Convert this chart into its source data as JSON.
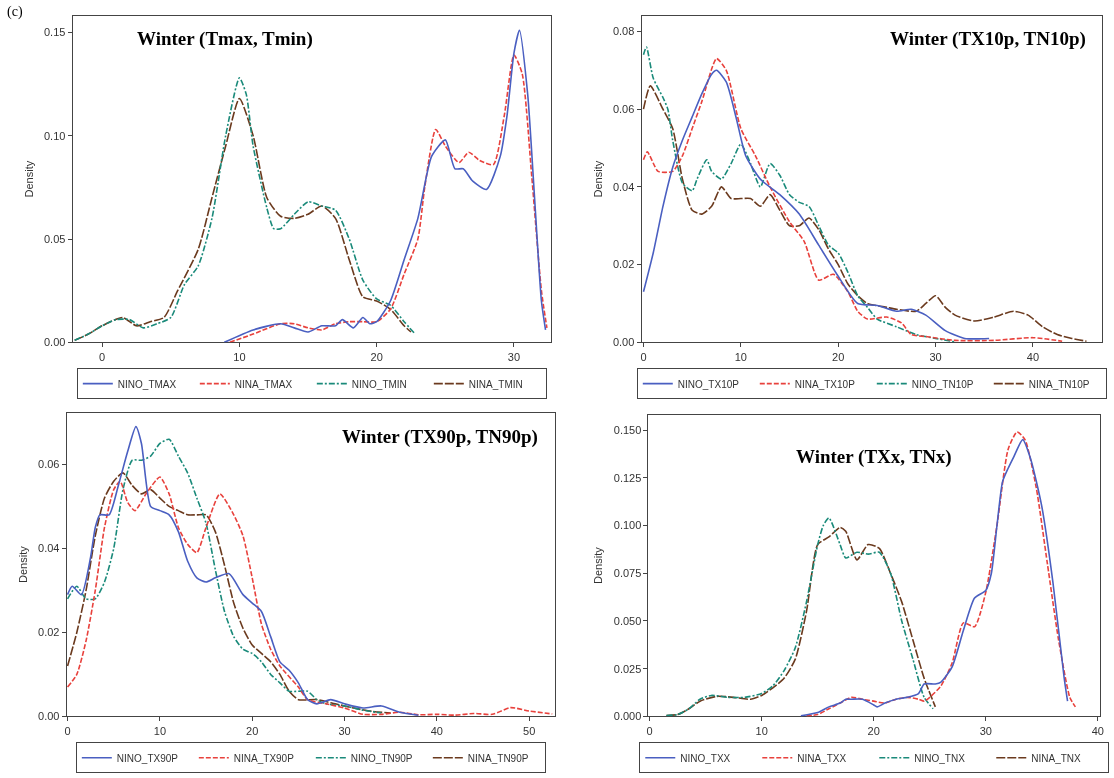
{
  "chart_data": [
    {
      "type": "line",
      "title": "Winter (Tmax, Tmin)",
      "ylabel": "Density",
      "annotations": [
        "(c)"
      ],
      "legend": "bottom",
      "xlim": [
        -2.15,
        32.7
      ],
      "ylim": [
        0,
        0.158
      ],
      "xticks": [
        0,
        10,
        20,
        30
      ],
      "yticks": [
        {
          "value": 0,
          "label": "0.00"
        },
        {
          "value": 0.05,
          "label": "0.05"
        },
        {
          "value": 0.1,
          "label": "0.10"
        },
        {
          "value": 0.15,
          "label": "0.15"
        }
      ],
      "series": [
        {
          "name": "NINO_TMAX",
          "color": "#4a5fc1",
          "line_style": "solid",
          "x": [
            8.9,
            11,
            13,
            14,
            15,
            16,
            17,
            17.5,
            18.3,
            19,
            19.5,
            20,
            21,
            22,
            23,
            24,
            25,
            25.7,
            26.3,
            27,
            28,
            29,
            29.5,
            30,
            30.4,
            31,
            31.5,
            32,
            32.3
          ],
          "values": [
            0.0,
            0.006,
            0.009,
            0.007,
            0.005,
            0.008,
            0.008,
            0.011,
            0.007,
            0.012,
            0.009,
            0.01,
            0.02,
            0.04,
            0.06,
            0.09,
            0.098,
            0.084,
            0.084,
            0.078,
            0.074,
            0.09,
            0.11,
            0.14,
            0.151,
            0.12,
            0.07,
            0.02,
            0.006
          ]
        },
        {
          "name": "NINA_TMAX",
          "color": "#e8413c",
          "line_style": "dashed",
          "x": [
            9.3,
            11,
            13,
            14,
            15,
            16,
            17,
            18,
            19,
            20,
            21,
            22,
            23,
            23.5,
            24.3,
            25,
            26,
            26.7,
            27.5,
            28.5,
            29.3,
            30,
            30.6,
            31.3,
            32,
            32.4
          ],
          "values": [
            0.0,
            0.004,
            0.009,
            0.009,
            0.007,
            0.006,
            0.009,
            0.01,
            0.01,
            0.01,
            0.016,
            0.033,
            0.05,
            0.075,
            0.103,
            0.095,
            0.087,
            0.092,
            0.088,
            0.086,
            0.11,
            0.139,
            0.13,
            0.08,
            0.025,
            0.007
          ]
        },
        {
          "name": "NINO_TMIN",
          "color": "#1a8a7a",
          "line_style": "dashdot",
          "x": [
            -2,
            -1,
            0,
            1,
            2,
            3,
            4,
            5,
            6,
            7,
            8,
            9,
            10,
            10.5,
            11,
            12,
            12.5,
            13,
            14,
            15,
            16,
            17,
            18,
            19,
            20,
            21,
            22,
            22.8
          ],
          "values": [
            0.001,
            0.004,
            0.008,
            0.011,
            0.011,
            0.007,
            0.009,
            0.012,
            0.028,
            0.037,
            0.06,
            0.1,
            0.128,
            0.12,
            0.095,
            0.065,
            0.055,
            0.055,
            0.062,
            0.068,
            0.066,
            0.064,
            0.05,
            0.03,
            0.021,
            0.018,
            0.01,
            0.004
          ]
        },
        {
          "name": "NINA_TMIN",
          "color": "#6b3a1e",
          "line_style": "longdash",
          "x": [
            -2,
            -1,
            0,
            1.5,
            2.5,
            3.5,
            4.5,
            5.5,
            7,
            8,
            9,
            10,
            11,
            12,
            13,
            14,
            15,
            16,
            17,
            18,
            19,
            20,
            21,
            22,
            22.5
          ],
          "values": [
            0.001,
            0.004,
            0.008,
            0.012,
            0.008,
            0.01,
            0.012,
            0.025,
            0.045,
            0.07,
            0.095,
            0.118,
            0.1,
            0.07,
            0.061,
            0.06,
            0.062,
            0.066,
            0.06,
            0.04,
            0.022,
            0.02,
            0.016,
            0.008,
            0.005
          ]
        }
      ]
    },
    {
      "type": "line",
      "title": "Winter (TX10p, TN10p)",
      "ylabel": "Density",
      "legend": "bottom",
      "xlim": [
        -0.2,
        47.1
      ],
      "ylim": [
        0,
        0.084
      ],
      "xticks": [
        0,
        10,
        20,
        30,
        40
      ],
      "yticks": [
        {
          "value": 0,
          "label": "0.00"
        },
        {
          "value": 0.02,
          "label": "0.02"
        },
        {
          "value": 0.04,
          "label": "0.04"
        },
        {
          "value": 0.06,
          "label": "0.06"
        },
        {
          "value": 0.08,
          "label": "0.08"
        }
      ],
      "series": [
        {
          "name": "NINO_TX10P",
          "color": "#4a5fc1",
          "line_style": "solid",
          "x": [
            0,
            1,
            2,
            3,
            4,
            5,
            6,
            7,
            7.5,
            8.5,
            9.5,
            10.5,
            12,
            14,
            16,
            18,
            20,
            22,
            24,
            26,
            27.5,
            29,
            31,
            33,
            35.5
          ],
          "values": [
            0.013,
            0.023,
            0.035,
            0.045,
            0.052,
            0.058,
            0.064,
            0.069,
            0.07,
            0.067,
            0.058,
            0.048,
            0.042,
            0.038,
            0.033,
            0.025,
            0.017,
            0.01,
            0.0095,
            0.008,
            0.0085,
            0.007,
            0.003,
            0.001,
            0.001
          ]
        },
        {
          "name": "NINA_TX10P",
          "color": "#e8413c",
          "line_style": "dashed",
          "x": [
            0,
            0.4,
            1.5,
            3,
            4,
            5,
            6,
            7.5,
            8.5,
            10,
            11.5,
            13,
            15,
            16.5,
            18,
            19.5,
            21,
            22,
            23,
            25,
            26.5,
            27.5,
            29,
            32,
            36,
            40,
            43
          ],
          "values": [
            0.047,
            0.049,
            0.044,
            0.044,
            0.048,
            0.055,
            0.062,
            0.073,
            0.07,
            0.055,
            0.048,
            0.04,
            0.031,
            0.026,
            0.016,
            0.0175,
            0.013,
            0.008,
            0.006,
            0.0065,
            0.005,
            0.002,
            0.0015,
            0.0005,
            0.0005,
            0.0012,
            0.0003
          ]
        },
        {
          "name": "NINO_TN10P",
          "color": "#1a8a7a",
          "line_style": "dashdot",
          "x": [
            0,
            0.3,
            1,
            2,
            2.5,
            3,
            4,
            5,
            5.5,
            6.5,
            7,
            8,
            9,
            10,
            11,
            12,
            13,
            14,
            15,
            16,
            17,
            18,
            19,
            20,
            21,
            22,
            23,
            24,
            26,
            28,
            30,
            32
          ],
          "values": [
            0.074,
            0.076,
            0.068,
            0.063,
            0.06,
            0.052,
            0.041,
            0.039,
            0.042,
            0.047,
            0.044,
            0.042,
            0.046,
            0.051,
            0.046,
            0.04,
            0.046,
            0.043,
            0.038,
            0.036,
            0.035,
            0.03,
            0.025,
            0.023,
            0.018,
            0.012,
            0.009,
            0.006,
            0.004,
            0.002,
            0.001,
            0.0001
          ]
        },
        {
          "name": "NINA_TN10P",
          "color": "#6b3a1e",
          "line_style": "longdash",
          "x": [
            0,
            0.7,
            2,
            3,
            4,
            5,
            6,
            7,
            8,
            9,
            10,
            11,
            12,
            13,
            14,
            15,
            16,
            17,
            18,
            19,
            20,
            21,
            22,
            23,
            25,
            26,
            28,
            29,
            30,
            31,
            32,
            34,
            36,
            38,
            39.5,
            41,
            42.5,
            44,
            45.5
          ],
          "values": [
            0.06,
            0.066,
            0.06,
            0.055,
            0.042,
            0.034,
            0.033,
            0.035,
            0.04,
            0.037,
            0.037,
            0.037,
            0.035,
            0.038,
            0.034,
            0.03,
            0.03,
            0.032,
            0.029,
            0.024,
            0.02,
            0.015,
            0.012,
            0.01,
            0.009,
            0.0085,
            0.008,
            0.01,
            0.012,
            0.009,
            0.007,
            0.0055,
            0.0065,
            0.008,
            0.007,
            0.004,
            0.002,
            0.001,
            0.0003
          ]
        }
      ]
    },
    {
      "type": "line",
      "title": "Winter (TX90p, TN90p)",
      "ylabel": "Density",
      "legend": "bottom",
      "xlim": [
        -0.1,
        52.8
      ],
      "ylim": [
        0,
        0.0723
      ],
      "xticks": [
        0,
        10,
        20,
        30,
        40,
        50
      ],
      "yticks": [
        {
          "value": 0,
          "label": "0.00"
        },
        {
          "value": 0.02,
          "label": "0.02"
        },
        {
          "value": 0.04,
          "label": "0.04"
        },
        {
          "value": 0.06,
          "label": "0.06"
        }
      ],
      "series": [
        {
          "name": "NINO_TX90P",
          "color": "#4a5fc1",
          "line_style": "solid",
          "x": [
            0,
            0.5,
            1.5,
            2.5,
            3,
            3.5,
            4.5,
            5.5,
            6.5,
            7.4,
            8,
            9,
            10,
            11,
            12,
            13,
            14,
            15,
            16,
            17.5,
            19,
            20,
            21,
            22,
            23,
            24,
            25,
            26,
            27,
            28.5,
            30,
            32,
            34,
            36,
            38
          ],
          "values": [
            0.029,
            0.031,
            0.029,
            0.038,
            0.045,
            0.048,
            0.048,
            0.055,
            0.063,
            0.069,
            0.065,
            0.05,
            0.049,
            0.048,
            0.044,
            0.037,
            0.033,
            0.032,
            0.033,
            0.034,
            0.029,
            0.027,
            0.025,
            0.019,
            0.013,
            0.011,
            0.008,
            0.004,
            0.003,
            0.004,
            0.003,
            0.002,
            0.0025,
            0.001,
            0.0003
          ]
        },
        {
          "name": "NINA_TX90P",
          "color": "#e8413c",
          "line_style": "dashed",
          "x": [
            0,
            1,
            2,
            3,
            4,
            5,
            5.7,
            6.5,
            7.3,
            8.5,
            10,
            11,
            12,
            13,
            14,
            15,
            16.5,
            18,
            19,
            20,
            21,
            22,
            23,
            25,
            26,
            28,
            30,
            32,
            34,
            36,
            38,
            40,
            42,
            44,
            46,
            48,
            50,
            52.5
          ],
          "values": [
            0.007,
            0.01,
            0.018,
            0.03,
            0.045,
            0.054,
            0.056,
            0.051,
            0.049,
            0.053,
            0.057,
            0.053,
            0.045,
            0.041,
            0.039,
            0.045,
            0.053,
            0.048,
            0.043,
            0.033,
            0.022,
            0.016,
            0.012,
            0.007,
            0.004,
            0.003,
            0.002,
            0.0005,
            0.0005,
            0.001,
            0.0004,
            0.0005,
            0.0003,
            0.0007,
            0.0005,
            0.0021,
            0.0013,
            0.0006
          ]
        },
        {
          "name": "NINO_TN90P",
          "color": "#1a8a7a",
          "line_style": "dashdot",
          "x": [
            0,
            1,
            2,
            3,
            4,
            5,
            6,
            7,
            8,
            9,
            10,
            11,
            12,
            13,
            14,
            15,
            16,
            17,
            18,
            19,
            20,
            21,
            22,
            23,
            24,
            25,
            26,
            27,
            28,
            30,
            32,
            34
          ],
          "values": [
            0.028,
            0.031,
            0.028,
            0.028,
            0.032,
            0.04,
            0.054,
            0.061,
            0.061,
            0.062,
            0.065,
            0.066,
            0.062,
            0.058,
            0.052,
            0.046,
            0.035,
            0.025,
            0.019,
            0.016,
            0.015,
            0.013,
            0.01,
            0.008,
            0.006,
            0.006,
            0.006,
            0.004,
            0.003,
            0.0025,
            0.0015,
            0.0008
          ]
        },
        {
          "name": "NINA_TN90P",
          "color": "#6b3a1e",
          "line_style": "longdash",
          "x": [
            0,
            1,
            2,
            3,
            4,
            5,
            6,
            7,
            8,
            9,
            10,
            11,
            12,
            13,
            14,
            15,
            16,
            17,
            18,
            19,
            20,
            21,
            22,
            23,
            24,
            25,
            27,
            29,
            31,
            33,
            35
          ],
          "values": [
            0.012,
            0.02,
            0.03,
            0.043,
            0.052,
            0.056,
            0.058,
            0.055,
            0.053,
            0.054,
            0.052,
            0.05,
            0.049,
            0.048,
            0.048,
            0.048,
            0.044,
            0.036,
            0.027,
            0.021,
            0.017,
            0.015,
            0.013,
            0.01,
            0.006,
            0.004,
            0.004,
            0.003,
            0.002,
            0.0012,
            0.0008
          ]
        }
      ]
    },
    {
      "type": "line",
      "title": "Winter (TXx, TNx)",
      "ylabel": "Density",
      "legend": "bottom",
      "xlim": [
        -0.1,
        40.2
      ],
      "ylim": [
        0,
        0.158
      ],
      "xticks": [
        0,
        10,
        20,
        30,
        40
      ],
      "yticks": [
        {
          "value": 0,
          "label": "0.000"
        },
        {
          "value": 0.025,
          "label": "0.025"
        },
        {
          "value": 0.05,
          "label": "0.050"
        },
        {
          "value": 0.075,
          "label": "0.075"
        },
        {
          "value": 0.1,
          "label": "0.100"
        },
        {
          "value": 0.125,
          "label": "0.125"
        },
        {
          "value": 0.15,
          "label": "0.150"
        }
      ],
      "series": [
        {
          "name": "NINO_TXX",
          "color": "#4a5fc1",
          "line_style": "solid",
          "x": [
            13.5,
            15,
            16,
            17,
            17.5,
            18,
            19,
            20,
            20.3,
            21,
            22,
            23,
            24,
            24.5,
            25.5,
            26,
            27,
            28,
            29,
            30,
            30.5,
            31,
            31.5,
            32,
            32.5,
            33.3,
            34,
            35,
            36,
            37,
            37.3
          ],
          "values": [
            0.0003,
            0.002,
            0.005,
            0.007,
            0.009,
            0.009,
            0.009,
            0.006,
            0.005,
            0.007,
            0.009,
            0.01,
            0.012,
            0.017,
            0.017,
            0.018,
            0.026,
            0.045,
            0.062,
            0.066,
            0.075,
            0.1,
            0.123,
            0.13,
            0.136,
            0.145,
            0.135,
            0.11,
            0.07,
            0.02,
            0.008
          ]
        },
        {
          "name": "NINA_TXX",
          "color": "#e8413c",
          "line_style": "dashed",
          "x": [
            14,
            15,
            16,
            17,
            18,
            19,
            20,
            21,
            22,
            23,
            24,
            24.5,
            25,
            26,
            27,
            28,
            29,
            30,
            31,
            32,
            32.8,
            33.5,
            34.5,
            35.5,
            36.5,
            37.5,
            38
          ],
          "values": [
            0.0003,
            0.001,
            0.004,
            0.007,
            0.01,
            0.009,
            0.008,
            0.007,
            0.009,
            0.01,
            0.009,
            0.008,
            0.01,
            0.016,
            0.028,
            0.049,
            0.047,
            0.065,
            0.1,
            0.14,
            0.149,
            0.145,
            0.12,
            0.08,
            0.04,
            0.01,
            0.005
          ]
        },
        {
          "name": "NINO_TNX",
          "color": "#1a8a7a",
          "line_style": "dashdot",
          "x": [
            1.5,
            2.5,
            3.5,
            4.5,
            5.5,
            7,
            8.5,
            10,
            11,
            12,
            13,
            14,
            15,
            15.5,
            16,
            17,
            17.5,
            18.5,
            19.5,
            20.5,
            21.5,
            22.5,
            23.5,
            24.5,
            25.3
          ],
          "values": [
            0.0005,
            0.001,
            0.004,
            0.009,
            0.011,
            0.01,
            0.01,
            0.012,
            0.016,
            0.024,
            0.036,
            0.06,
            0.09,
            0.1,
            0.104,
            0.09,
            0.083,
            0.086,
            0.085,
            0.086,
            0.075,
            0.05,
            0.03,
            0.01,
            0.004
          ]
        },
        {
          "name": "NINA_TNX",
          "color": "#6b3a1e",
          "line_style": "longdash",
          "x": [
            1.5,
            2.5,
            3.5,
            4.5,
            6,
            7.5,
            9,
            10,
            11,
            12,
            13,
            14,
            15,
            16,
            17,
            17.5,
            18.5,
            19.5,
            20.5,
            21.5,
            22.5,
            23.5,
            24.5,
            25.5
          ],
          "values": [
            0.0005,
            0.001,
            0.004,
            0.008,
            0.0105,
            0.01,
            0.009,
            0.011,
            0.015,
            0.02,
            0.03,
            0.055,
            0.09,
            0.094,
            0.099,
            0.097,
            0.082,
            0.09,
            0.088,
            0.075,
            0.06,
            0.04,
            0.02,
            0.005
          ]
        }
      ]
    }
  ]
}
